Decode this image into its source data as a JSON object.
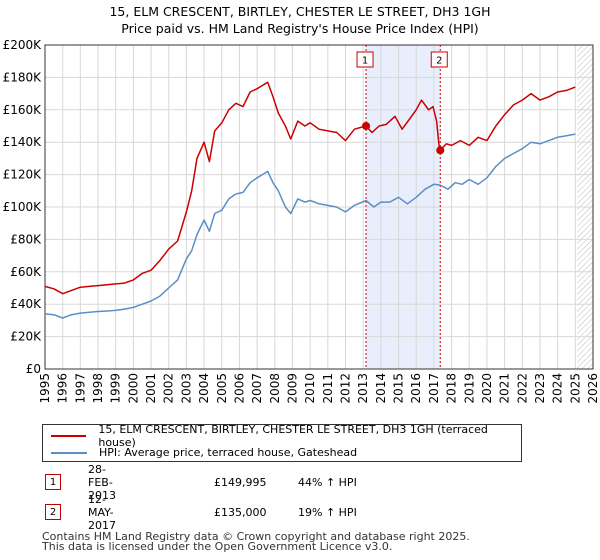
{
  "title_line1": "15, ELM CRESCENT, BIRTLEY, CHESTER LE STREET, DH3 1GH",
  "title_line2": "Price paid vs. HM Land Registry's House Price Index (HPI)",
  "chart_data": {
    "type": "line",
    "title": "15, ELM CRESCENT, BIRTLEY, CHESTER LE STREET, DH3 1GH — Price paid vs. HM Land Registry's House Price Index (HPI)",
    "xlabel": "",
    "ylabel": "",
    "xlim": [
      1995,
      2026
    ],
    "ylim": [
      0,
      200000
    ],
    "y_ticks": [
      0,
      20000,
      40000,
      60000,
      80000,
      100000,
      120000,
      140000,
      160000,
      180000,
      200000
    ],
    "y_tick_labels": [
      "£0",
      "£20K",
      "£40K",
      "£60K",
      "£80K",
      "£100K",
      "£120K",
      "£140K",
      "£160K",
      "£180K",
      "£200K"
    ],
    "x_ticks": [
      "1995",
      "1996",
      "1997",
      "1998",
      "1999",
      "2000",
      "2001",
      "2002",
      "2003",
      "2004",
      "2005",
      "2006",
      "2007",
      "2008",
      "2009",
      "2010",
      "2011",
      "2012",
      "2013",
      "2014",
      "2015",
      "2016",
      "2017",
      "2018",
      "2019",
      "2020",
      "2021",
      "2022",
      "2023",
      "2024",
      "2025",
      "2026"
    ],
    "grid": true,
    "shaded_span": [
      2013.16,
      2017.36
    ],
    "future_hatch_from": 2025.1,
    "series": [
      {
        "name": "15, ELM CRESCENT, BIRTLEY, CHESTER LE STREET, DH3 1GH (terraced house)",
        "color": "#cc0000",
        "points": [
          [
            1995.0,
            51000
          ],
          [
            1995.5,
            49500
          ],
          [
            1996.0,
            46500
          ],
          [
            1996.5,
            48500
          ],
          [
            1997.0,
            50500
          ],
          [
            1997.5,
            51000
          ],
          [
            1998.0,
            51500
          ],
          [
            1998.5,
            52000
          ],
          [
            1999.0,
            52500
          ],
          [
            1999.5,
            53000
          ],
          [
            2000.0,
            55000
          ],
          [
            2000.5,
            59000
          ],
          [
            2001.0,
            61000
          ],
          [
            2001.5,
            67000
          ],
          [
            2002.0,
            74000
          ],
          [
            2002.5,
            79000
          ],
          [
            2003.0,
            97000
          ],
          [
            2003.3,
            110000
          ],
          [
            2003.6,
            130000
          ],
          [
            2004.0,
            140000
          ],
          [
            2004.3,
            128000
          ],
          [
            2004.6,
            147000
          ],
          [
            2005.0,
            152000
          ],
          [
            2005.4,
            160000
          ],
          [
            2005.8,
            164000
          ],
          [
            2006.2,
            162000
          ],
          [
            2006.6,
            171000
          ],
          [
            2007.0,
            173000
          ],
          [
            2007.3,
            175000
          ],
          [
            2007.6,
            177000
          ],
          [
            2007.9,
            168000
          ],
          [
            2008.2,
            158000
          ],
          [
            2008.6,
            150000
          ],
          [
            2008.9,
            142000
          ],
          [
            2009.3,
            153000
          ],
          [
            2009.7,
            150000
          ],
          [
            2010.0,
            152000
          ],
          [
            2010.5,
            148000
          ],
          [
            2011.0,
            147000
          ],
          [
            2011.5,
            146000
          ],
          [
            2012.0,
            141000
          ],
          [
            2012.5,
            148000
          ],
          [
            2013.16,
            149995
          ],
          [
            2013.5,
            146000
          ],
          [
            2013.9,
            150000
          ],
          [
            2014.3,
            151000
          ],
          [
            2014.8,
            156000
          ],
          [
            2015.2,
            148000
          ],
          [
            2015.6,
            154000
          ],
          [
            2016.0,
            160000
          ],
          [
            2016.3,
            166000
          ],
          [
            2016.7,
            160000
          ],
          [
            2016.95,
            162000
          ],
          [
            2017.15,
            153000
          ],
          [
            2017.3,
            137000
          ],
          [
            2017.36,
            135000
          ],
          [
            2017.7,
            139000
          ],
          [
            2018.0,
            138000
          ],
          [
            2018.5,
            141000
          ],
          [
            2019.0,
            138000
          ],
          [
            2019.5,
            143000
          ],
          [
            2020.0,
            141000
          ],
          [
            2020.5,
            150000
          ],
          [
            2021.0,
            157000
          ],
          [
            2021.5,
            163000
          ],
          [
            2022.0,
            166000
          ],
          [
            2022.5,
            170000
          ],
          [
            2023.0,
            166000
          ],
          [
            2023.5,
            168000
          ],
          [
            2024.0,
            171000
          ],
          [
            2024.5,
            172000
          ],
          [
            2025.0,
            174000
          ]
        ]
      },
      {
        "name": "HPI: Average price, terraced house, Gateshead",
        "color": "#5b8ec7",
        "points": [
          [
            1995.0,
            34000
          ],
          [
            1995.5,
            33500
          ],
          [
            1996.0,
            31500
          ],
          [
            1996.5,
            33500
          ],
          [
            1997.0,
            34500
          ],
          [
            1997.5,
            35000
          ],
          [
            1998.0,
            35500
          ],
          [
            1998.5,
            35800
          ],
          [
            1999.0,
            36200
          ],
          [
            1999.5,
            37000
          ],
          [
            2000.0,
            38000
          ],
          [
            2000.5,
            40000
          ],
          [
            2001.0,
            42000
          ],
          [
            2001.5,
            45000
          ],
          [
            2002.0,
            50000
          ],
          [
            2002.5,
            55000
          ],
          [
            2003.0,
            68000
          ],
          [
            2003.3,
            73000
          ],
          [
            2003.6,
            83000
          ],
          [
            2004.0,
            92000
          ],
          [
            2004.3,
            85000
          ],
          [
            2004.6,
            96000
          ],
          [
            2005.0,
            98000
          ],
          [
            2005.4,
            105000
          ],
          [
            2005.8,
            108000
          ],
          [
            2006.2,
            109000
          ],
          [
            2006.6,
            115000
          ],
          [
            2007.0,
            118000
          ],
          [
            2007.3,
            120000
          ],
          [
            2007.6,
            122000
          ],
          [
            2007.9,
            115000
          ],
          [
            2008.2,
            110000
          ],
          [
            2008.6,
            100000
          ],
          [
            2008.9,
            96000
          ],
          [
            2009.3,
            105000
          ],
          [
            2009.7,
            103000
          ],
          [
            2010.0,
            104000
          ],
          [
            2010.5,
            102000
          ],
          [
            2011.0,
            101000
          ],
          [
            2011.5,
            100000
          ],
          [
            2012.0,
            97000
          ],
          [
            2012.5,
            101000
          ],
          [
            2013.16,
            104000
          ],
          [
            2013.6,
            100000
          ],
          [
            2014.0,
            103000
          ],
          [
            2014.5,
            103000
          ],
          [
            2015.0,
            106000
          ],
          [
            2015.5,
            102000
          ],
          [
            2016.0,
            106000
          ],
          [
            2016.5,
            111000
          ],
          [
            2017.0,
            114000
          ],
          [
            2017.36,
            113500
          ],
          [
            2017.8,
            111000
          ],
          [
            2018.2,
            115000
          ],
          [
            2018.6,
            114000
          ],
          [
            2019.0,
            117000
          ],
          [
            2019.5,
            114000
          ],
          [
            2020.0,
            118000
          ],
          [
            2020.5,
            125000
          ],
          [
            2021.0,
            130000
          ],
          [
            2021.5,
            133000
          ],
          [
            2022.0,
            136000
          ],
          [
            2022.5,
            140000
          ],
          [
            2023.0,
            139000
          ],
          [
            2023.5,
            141000
          ],
          [
            2024.0,
            143000
          ],
          [
            2024.5,
            144000
          ],
          [
            2025.0,
            145000
          ]
        ]
      }
    ],
    "markers": [
      {
        "label": "1",
        "x": 2013.16,
        "y": 149995
      },
      {
        "label": "2",
        "x": 2017.36,
        "y": 135000
      }
    ]
  },
  "legend": {
    "items": [
      {
        "label": "15, ELM CRESCENT, BIRTLEY, CHESTER LE STREET, DH3 1GH (terraced house)",
        "color": "#cc0000"
      },
      {
        "label": "HPI: Average price, terraced house, Gateshead",
        "color": "#5b8ec7"
      }
    ]
  },
  "transactions": [
    {
      "num": "1",
      "date": "28-FEB-2013",
      "price": "£149,995",
      "hpi": "44% ↑ HPI"
    },
    {
      "num": "2",
      "date": "12-MAY-2017",
      "price": "£135,000",
      "hpi": "19% ↑ HPI"
    }
  ],
  "footer_line1": "Contains HM Land Registry data © Crown copyright and database right 2025.",
  "footer_line2": "This data is licensed under the Open Government Licence v3.0."
}
